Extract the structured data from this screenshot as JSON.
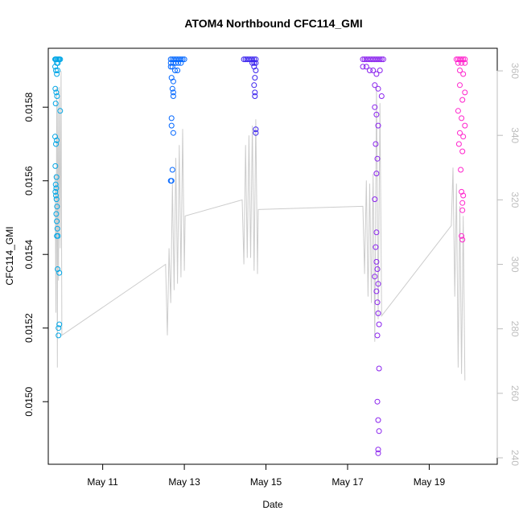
{
  "chart_data": {
    "type": "scatter",
    "title": "ATOM4 Northbound CFC114_GMI",
    "xlabel": "Date",
    "ylabel": "CFC114_GMI",
    "xlim": [
      "2018-05-09T16:00",
      "2018-05-20T16:00"
    ],
    "ylim": [
      0.01483,
      0.01596
    ],
    "y2lim": [
      238,
      367
    ],
    "x_ticks": [
      {
        "date": "2018-05-11",
        "label": "May 11"
      },
      {
        "date": "2018-05-13",
        "label": "May 13"
      },
      {
        "date": "2018-05-15",
        "label": "May 15"
      },
      {
        "date": "2018-05-17",
        "label": "May 17"
      },
      {
        "date": "2018-05-19",
        "label": "May 19"
      }
    ],
    "y_ticks": [
      {
        "value": 0.015,
        "label": "0.0150"
      },
      {
        "value": 0.0152,
        "label": "0.0152"
      },
      {
        "value": 0.0154,
        "label": "0.0154"
      },
      {
        "value": 0.0156,
        "label": "0.0156"
      },
      {
        "value": 0.0158,
        "label": "0.0158"
      }
    ],
    "y2_ticks": [
      {
        "value": 240,
        "label": "240"
      },
      {
        "value": 260,
        "label": "260"
      },
      {
        "value": 280,
        "label": "280"
      },
      {
        "value": 300,
        "label": "300"
      },
      {
        "value": 320,
        "label": "320"
      },
      {
        "value": 340,
        "label": "340"
      },
      {
        "value": 360,
        "label": "360"
      }
    ],
    "grid": false,
    "legend": "none",
    "point_colors": [
      "#00a6e6",
      "#0066ff",
      "#3a22ee",
      "#8a22ee",
      "#ff22cc"
    ],
    "line_color": "#cccccc",
    "flights": [
      {
        "color": "#00a6e6",
        "points": [
          [
            "2018-05-09T20:00",
            0.01593
          ],
          [
            "2018-05-09T20:20",
            0.01593
          ],
          [
            "2018-05-09T20:40",
            0.01593
          ],
          [
            "2018-05-09T21:00",
            0.01592
          ],
          [
            "2018-05-09T21:20",
            0.01593
          ],
          [
            "2018-05-09T21:40",
            0.01592
          ],
          [
            "2018-05-09T22:00",
            0.01593
          ],
          [
            "2018-05-09T22:30",
            0.01593
          ],
          [
            "2018-05-09T23:00",
            0.01593
          ],
          [
            "2018-05-09T20:00",
            0.01591
          ],
          [
            "2018-05-09T20:30",
            0.0159
          ],
          [
            "2018-05-09T21:00",
            0.01589
          ],
          [
            "2018-05-09T21:30",
            0.0159
          ],
          [
            "2018-05-09T20:10",
            0.01585
          ],
          [
            "2018-05-09T20:40",
            0.01584
          ],
          [
            "2018-05-09T21:10",
            0.01583
          ],
          [
            "2018-05-09T20:20",
            0.01581
          ],
          [
            "2018-05-09T23:00",
            0.01579
          ],
          [
            "2018-05-09T20:00",
            0.01572
          ],
          [
            "2018-05-09T21:00",
            0.01571
          ],
          [
            "2018-05-09T20:30",
            0.0157
          ],
          [
            "2018-05-09T20:10",
            0.01564
          ],
          [
            "2018-05-09T20:50",
            0.01561
          ],
          [
            "2018-05-09T20:20",
            0.01559
          ],
          [
            "2018-05-09T20:40",
            0.01558
          ],
          [
            "2018-05-09T20:10",
            0.01557
          ],
          [
            "2018-05-09T20:30",
            0.01556
          ],
          [
            "2018-05-09T20:50",
            0.01555
          ],
          [
            "2018-05-09T21:10",
            0.01553
          ],
          [
            "2018-05-09T20:40",
            0.01551
          ],
          [
            "2018-05-09T21:00",
            0.01549
          ],
          [
            "2018-05-09T21:20",
            0.01547
          ],
          [
            "2018-05-09T21:00",
            0.01545
          ],
          [
            "2018-05-09T21:40",
            0.01545
          ],
          [
            "2018-05-09T21:30",
            0.01536
          ],
          [
            "2018-05-09T22:30",
            0.01535
          ],
          [
            "2018-05-09T22:30",
            0.01521
          ],
          [
            "2018-05-09T22:00",
            0.0152
          ],
          [
            "2018-05-09T22:00",
            0.01518
          ]
        ]
      },
      {
        "color": "#0066ff",
        "points": [
          [
            "2018-05-12T16:00",
            0.01593
          ],
          [
            "2018-05-12T17:00",
            0.01593
          ],
          [
            "2018-05-12T18:00",
            0.01593
          ],
          [
            "2018-05-12T19:00",
            0.01593
          ],
          [
            "2018-05-12T20:00",
            0.01593
          ],
          [
            "2018-05-12T21:00",
            0.01593
          ],
          [
            "2018-05-12T22:00",
            0.01593
          ],
          [
            "2018-05-12T23:00",
            0.01593
          ],
          [
            "2018-05-13T00:00",
            0.01593
          ],
          [
            "2018-05-12T16:00",
            0.01592
          ],
          [
            "2018-05-12T17:30",
            0.01592
          ],
          [
            "2018-05-12T19:00",
            0.01592
          ],
          [
            "2018-05-12T20:30",
            0.01592
          ],
          [
            "2018-05-12T22:00",
            0.01592
          ],
          [
            "2018-05-12T16:00",
            0.01591
          ],
          [
            "2018-05-12T17:00",
            0.01591
          ],
          [
            "2018-05-12T18:30",
            0.0159
          ],
          [
            "2018-05-12T20:00",
            0.0159
          ],
          [
            "2018-05-12T16:30",
            0.01588
          ],
          [
            "2018-05-12T17:30",
            0.01587
          ],
          [
            "2018-05-12T17:00",
            0.01585
          ],
          [
            "2018-05-12T17:30",
            0.01584
          ],
          [
            "2018-05-12T17:30",
            0.01583
          ],
          [
            "2018-05-12T16:30",
            0.01577
          ],
          [
            "2018-05-12T16:30",
            0.01575
          ],
          [
            "2018-05-12T17:30",
            0.01573
          ],
          [
            "2018-05-12T17:00",
            0.01563
          ],
          [
            "2018-05-12T16:30",
            0.0156
          ],
          [
            "2018-05-12T16:00",
            0.0156
          ]
        ]
      },
      {
        "color": "#3a22ee",
        "points": [
          [
            "2018-05-14T11:00",
            0.01593
          ],
          [
            "2018-05-14T12:00",
            0.01593
          ],
          [
            "2018-05-14T13:00",
            0.01593
          ],
          [
            "2018-05-14T14:00",
            0.01593
          ],
          [
            "2018-05-14T15:00",
            0.01593
          ],
          [
            "2018-05-14T16:00",
            0.01593
          ],
          [
            "2018-05-14T17:00",
            0.01593
          ],
          [
            "2018-05-14T18:00",
            0.01593
          ],
          [
            "2018-05-14T16:00",
            0.01592
          ],
          [
            "2018-05-14T17:00",
            0.01592
          ],
          [
            "2018-05-14T18:00",
            0.01592
          ],
          [
            "2018-05-14T17:00",
            0.01591
          ],
          [
            "2018-05-14T18:00",
            0.0159
          ],
          [
            "2018-05-14T17:30",
            0.01588
          ],
          [
            "2018-05-14T17:00",
            0.01586
          ],
          [
            "2018-05-14T17:30",
            0.01584
          ],
          [
            "2018-05-14T17:30",
            0.01583
          ],
          [
            "2018-05-14T18:00",
            0.01574
          ],
          [
            "2018-05-14T18:00",
            0.01573
          ]
        ]
      },
      {
        "color": "#8a22ee",
        "points": [
          [
            "2018-05-17T09:00",
            0.01593
          ],
          [
            "2018-05-17T10:00",
            0.01593
          ],
          [
            "2018-05-17T11:00",
            0.01593
          ],
          [
            "2018-05-17T12:00",
            0.01593
          ],
          [
            "2018-05-17T13:00",
            0.01593
          ],
          [
            "2018-05-17T14:00",
            0.01593
          ],
          [
            "2018-05-17T15:00",
            0.01593
          ],
          [
            "2018-05-17T16:00",
            0.01593
          ],
          [
            "2018-05-17T17:00",
            0.01593
          ],
          [
            "2018-05-17T18:00",
            0.01593
          ],
          [
            "2018-05-17T19:00",
            0.01593
          ],
          [
            "2018-05-17T20:00",
            0.01593
          ],
          [
            "2018-05-17T21:00",
            0.01593
          ],
          [
            "2018-05-17T09:00",
            0.01591
          ],
          [
            "2018-05-17T11:00",
            0.01591
          ],
          [
            "2018-05-17T13:00",
            0.0159
          ],
          [
            "2018-05-17T15:00",
            0.0159
          ],
          [
            "2018-05-17T17:00",
            0.01589
          ],
          [
            "2018-05-17T19:00",
            0.0159
          ],
          [
            "2018-05-17T16:00",
            0.01586
          ],
          [
            "2018-05-17T18:00",
            0.01585
          ],
          [
            "2018-05-17T20:00",
            0.01583
          ],
          [
            "2018-05-17T16:00",
            0.0158
          ],
          [
            "2018-05-17T17:00",
            0.01578
          ],
          [
            "2018-05-17T18:00",
            0.01575
          ],
          [
            "2018-05-17T16:30",
            0.0157
          ],
          [
            "2018-05-17T17:30",
            0.01566
          ],
          [
            "2018-05-17T17:00",
            0.01562
          ],
          [
            "2018-05-17T16:00",
            0.01555
          ],
          [
            "2018-05-17T17:00",
            0.01546
          ],
          [
            "2018-05-17T16:30",
            0.01542
          ],
          [
            "2018-05-17T17:00",
            0.01538
          ],
          [
            "2018-05-17T17:30",
            0.01536
          ],
          [
            "2018-05-17T16:00",
            0.01534
          ],
          [
            "2018-05-17T18:00",
            0.01532
          ],
          [
            "2018-05-17T17:00",
            0.0153
          ],
          [
            "2018-05-17T17:30",
            0.01527
          ],
          [
            "2018-05-17T18:00",
            0.01524
          ],
          [
            "2018-05-17T18:30",
            0.01521
          ],
          [
            "2018-05-17T17:30",
            0.01518
          ],
          [
            "2018-05-17T18:30",
            0.01509
          ],
          [
            "2018-05-17T17:30",
            0.015
          ],
          [
            "2018-05-17T18:00",
            0.01495
          ],
          [
            "2018-05-17T18:30",
            0.01492
          ],
          [
            "2018-05-17T18:00",
            0.01487
          ],
          [
            "2018-05-17T18:00",
            0.01486
          ]
        ]
      },
      {
        "color": "#ff22cc",
        "points": [
          [
            "2018-05-19T16:00",
            0.01593
          ],
          [
            "2018-05-19T17:00",
            0.01593
          ],
          [
            "2018-05-19T18:00",
            0.01593
          ],
          [
            "2018-05-19T19:00",
            0.01593
          ],
          [
            "2018-05-19T20:00",
            0.01593
          ],
          [
            "2018-05-19T21:00",
            0.01593
          ],
          [
            "2018-05-19T17:00",
            0.01592
          ],
          [
            "2018-05-19T19:00",
            0.01592
          ],
          [
            "2018-05-19T21:00",
            0.01592
          ],
          [
            "2018-05-19T18:00",
            0.0159
          ],
          [
            "2018-05-19T20:00",
            0.01589
          ],
          [
            "2018-05-19T18:00",
            0.01586
          ],
          [
            "2018-05-19T21:00",
            0.01584
          ],
          [
            "2018-05-19T19:30",
            0.01582
          ],
          [
            "2018-05-19T17:00",
            0.01579
          ],
          [
            "2018-05-19T19:00",
            0.01577
          ],
          [
            "2018-05-19T21:00",
            0.01575
          ],
          [
            "2018-05-19T18:00",
            0.01573
          ],
          [
            "2018-05-19T20:00",
            0.01572
          ],
          [
            "2018-05-19T17:30",
            0.0157
          ],
          [
            "2018-05-19T19:30",
            0.01568
          ],
          [
            "2018-05-19T18:30",
            0.01563
          ],
          [
            "2018-05-19T19:00",
            0.01557
          ],
          [
            "2018-05-19T20:00",
            0.01556
          ],
          [
            "2018-05-19T19:30",
            0.01554
          ],
          [
            "2018-05-19T19:30",
            0.01552
          ],
          [
            "2018-05-19T19:00",
            0.01545
          ],
          [
            "2018-05-19T19:30",
            0.01544
          ]
        ]
      }
    ],
    "secondary_line": [
      [
        "2018-05-09T20:00",
        328
      ],
      [
        "2018-05-09T20:30",
        285
      ],
      [
        "2018-05-09T21:00",
        355
      ],
      [
        "2018-05-09T21:20",
        268
      ],
      [
        "2018-05-09T21:40",
        350
      ],
      [
        "2018-05-09T22:00",
        295
      ],
      [
        "2018-05-09T22:30",
        355
      ],
      [
        "2018-05-09T23:00",
        305
      ],
      [
        "2018-05-09T23:30",
        360
      ],
      [
        "2018-05-09T23:59",
        278
      ],
      [
        "2018-05-10T00:00",
        278
      ],
      [
        "2018-05-12T13:00",
        300
      ],
      [
        "2018-05-12T14:00",
        278
      ],
      [
        "2018-05-12T15:00",
        305
      ],
      [
        "2018-05-12T16:00",
        288
      ],
      [
        "2018-05-12T17:00",
        325
      ],
      [
        "2018-05-12T18:00",
        292
      ],
      [
        "2018-05-12T19:00",
        333
      ],
      [
        "2018-05-12T20:00",
        294
      ],
      [
        "2018-05-12T21:00",
        337
      ],
      [
        "2018-05-12T22:00",
        296
      ],
      [
        "2018-05-12T23:00",
        342
      ],
      [
        "2018-05-13T00:00",
        298
      ],
      [
        "2018-05-13T00:30",
        315
      ],
      [
        "2018-05-14T10:00",
        320
      ],
      [
        "2018-05-14T11:00",
        300
      ],
      [
        "2018-05-14T12:00",
        337
      ],
      [
        "2018-05-14T13:00",
        302
      ],
      [
        "2018-05-14T14:00",
        340
      ],
      [
        "2018-05-14T15:00",
        302
      ],
      [
        "2018-05-14T16:00",
        343
      ],
      [
        "2018-05-14T17:00",
        298
      ],
      [
        "2018-05-14T18:00",
        345
      ],
      [
        "2018-05-14T19:00",
        297
      ],
      [
        "2018-05-14T19:30",
        317
      ],
      [
        "2018-05-17T09:00",
        318
      ],
      [
        "2018-05-17T10:00",
        297
      ],
      [
        "2018-05-17T11:00",
        326
      ],
      [
        "2018-05-17T12:00",
        290
      ],
      [
        "2018-05-17T13:00",
        325
      ],
      [
        "2018-05-17T14:00",
        288
      ],
      [
        "2018-05-17T15:00",
        328
      ],
      [
        "2018-05-17T16:00",
        276
      ],
      [
        "2018-05-17T17:00",
        355
      ],
      [
        "2018-05-17T18:00",
        283
      ],
      [
        "2018-05-17T19:00",
        350
      ],
      [
        "2018-05-17T20:00",
        284
      ],
      [
        "2018-05-19T13:00",
        312
      ],
      [
        "2018-05-19T14:00",
        330
      ],
      [
        "2018-05-19T15:00",
        290
      ],
      [
        "2018-05-19T16:00",
        325
      ],
      [
        "2018-05-19T17:00",
        268
      ],
      [
        "2018-05-19T18:00",
        318
      ],
      [
        "2018-05-19T19:00",
        266
      ],
      [
        "2018-05-19T20:00",
        315
      ],
      [
        "2018-05-19T21:00",
        264
      ]
    ]
  }
}
